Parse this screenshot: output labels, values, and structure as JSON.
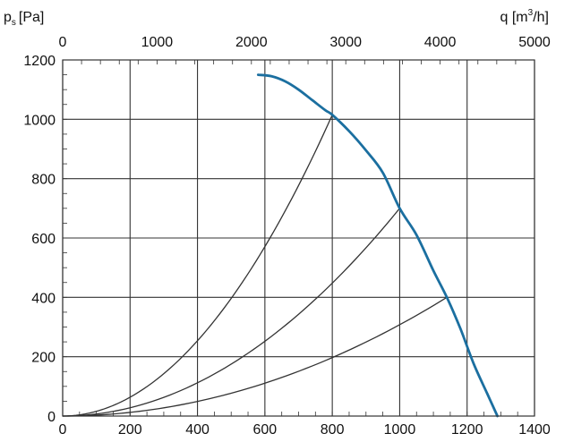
{
  "chart_data": {
    "type": "line",
    "y_axis": {
      "label": "p",
      "label_subscript": "s",
      "label_unit": "[Pa]",
      "range": [
        0,
        1200
      ],
      "ticks": [
        "0",
        "200",
        "400",
        "600",
        "800",
        "1000",
        "1200"
      ]
    },
    "x_axis_bottom": {
      "range": [
        0,
        1400
      ],
      "ticks": [
        "0",
        "200",
        "400",
        "600",
        "800",
        "1000",
        "1200",
        "1400"
      ]
    },
    "x_axis_top": {
      "label_prefix": "q [m",
      "label_superscript": "3",
      "label_suffix": "/h]",
      "range": [
        0,
        5000
      ],
      "ticks": [
        "0",
        "1000",
        "2000",
        "3000",
        "4000",
        "5000"
      ]
    },
    "grid": true,
    "colors": {
      "fan_curve": "#1b6fa0",
      "system_curves": "#333333",
      "grid": "#333333"
    },
    "fan_curve": {
      "x": [
        580,
        620,
        660,
        700,
        740,
        780,
        800,
        850,
        900,
        950,
        1000,
        1050,
        1100,
        1140,
        1180,
        1220,
        1260,
        1290
      ],
      "y": [
        1150,
        1145,
        1128,
        1100,
        1065,
        1030,
        1015,
        960,
        895,
        820,
        700,
        610,
        490,
        400,
        295,
        175,
        75,
        0
      ]
    },
    "system_curves": [
      {
        "end": [
          800,
          1015
        ]
      },
      {
        "end": [
          1000,
          700
        ]
      },
      {
        "end": [
          1140,
          400
        ]
      }
    ]
  }
}
